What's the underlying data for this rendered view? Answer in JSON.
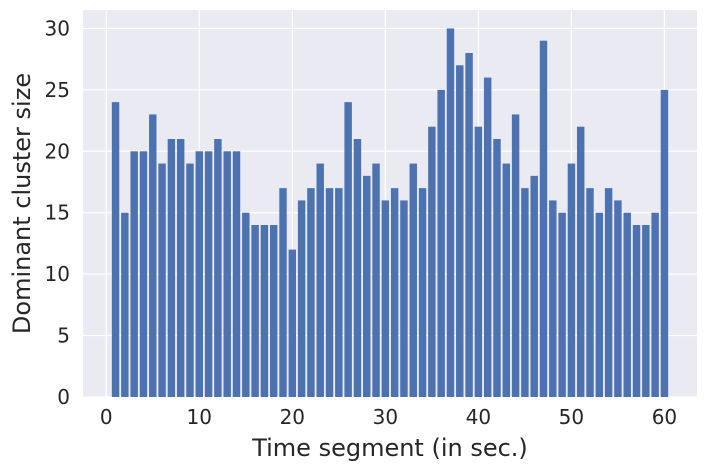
{
  "chart_data": {
    "type": "bar",
    "title": "",
    "xlabel": "Time segment (in sec.)",
    "ylabel": "Dominant cluster size",
    "x": [
      1,
      2,
      3,
      4,
      5,
      6,
      7,
      8,
      9,
      10,
      11,
      12,
      13,
      14,
      15,
      16,
      17,
      18,
      19,
      20,
      21,
      22,
      23,
      24,
      25,
      26,
      27,
      28,
      29,
      30,
      31,
      32,
      33,
      34,
      35,
      36,
      37,
      38,
      39,
      40,
      41,
      42,
      43,
      44,
      45,
      46,
      47,
      48,
      49,
      50,
      51,
      52,
      53,
      54,
      55,
      56,
      57,
      58,
      59,
      60
    ],
    "values": [
      24,
      15,
      20,
      20,
      23,
      19,
      21,
      21,
      19,
      20,
      20,
      21,
      20,
      20,
      15,
      14,
      14,
      14,
      17,
      12,
      16,
      17,
      19,
      17,
      17,
      24,
      21,
      18,
      19,
      16,
      17,
      16,
      19,
      17,
      22,
      25,
      30,
      27,
      28,
      22,
      26,
      21,
      19,
      23,
      17,
      18,
      29,
      16,
      15,
      19,
      22,
      17,
      15,
      17,
      16,
      15,
      14,
      14,
      15,
      25
    ],
    "xlim": [
      -2.5,
      63.5
    ],
    "ylim": [
      0,
      31.5
    ],
    "xticks": [
      0,
      10,
      20,
      30,
      40,
      50,
      60
    ],
    "yticks": [
      0,
      5,
      10,
      15,
      20,
      25,
      30
    ],
    "grid": true,
    "colors": {
      "bar": "#4c72b0",
      "background": "#eaeaf2",
      "grid": "#ffffff"
    }
  }
}
